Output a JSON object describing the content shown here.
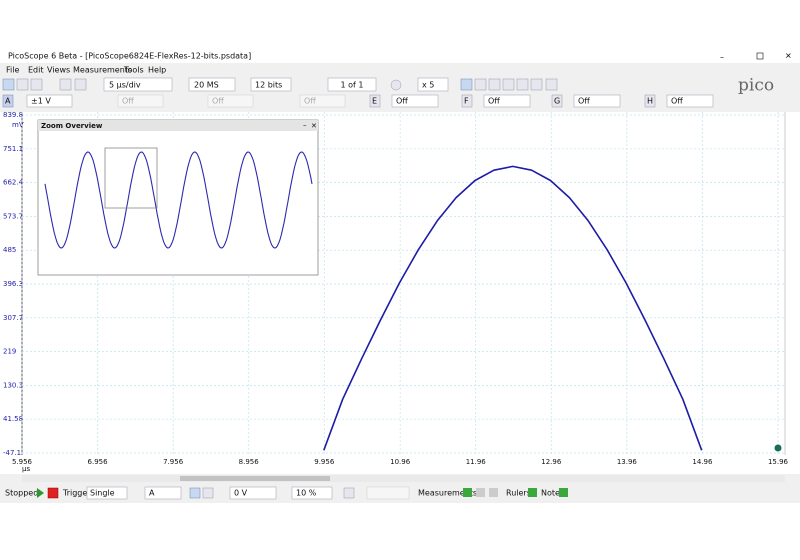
{
  "window": {
    "title": "PicoScope 6 Beta - [PicoScope6824E-FlexRes-12-bits.psdata]"
  },
  "menu": [
    "File",
    "Edit",
    "Views",
    "Measurements",
    "Tools",
    "Help"
  ],
  "logo": "pico",
  "toolbar": {
    "timebase": "5 µs/div",
    "samples": "20 MS",
    "resolution": "12 bits",
    "buffer": "1 of 1",
    "zoom": "x 5",
    "channel_a": {
      "name": "A",
      "range": "±1 V"
    },
    "disabled": [
      "Off",
      "Off",
      "Off"
    ],
    "channels": [
      {
        "name": "E",
        "setting": "Off"
      },
      {
        "name": "F",
        "setting": "Off"
      },
      {
        "name": "G",
        "setting": "Off"
      },
      {
        "name": "H",
        "setting": "Off"
      }
    ]
  },
  "zoom_overview": {
    "title": "Zoom Overview"
  },
  "chart_data": {
    "type": "line",
    "y_label": "mV",
    "x_label": "µs",
    "x": [
      9.95,
      10.2,
      10.45,
      10.7,
      10.95,
      11.2,
      11.45,
      11.7,
      11.95,
      12.2,
      12.45,
      12.7,
      12.95,
      13.2,
      13.45,
      13.7,
      13.95,
      14.2,
      14.45,
      14.7,
      14.95
    ],
    "series": [
      {
        "color": "#1c1ca8",
        "values": [
          -40,
          94,
          200,
          302,
          399,
          486,
          562,
          623,
          668,
          695,
          705,
          695,
          668,
          623,
          562,
          486,
          399,
          302,
          200,
          94,
          -40
        ]
      }
    ],
    "xlim": [
      5.956,
      15.96
    ],
    "ylim": [
      -47.1,
      839.8
    ],
    "xticks": [
      5.956,
      6.956,
      7.956,
      8.956,
      9.956,
      10.96,
      11.96,
      12.96,
      13.96,
      14.96,
      15.96
    ],
    "yticks": [
      -47.1,
      41.58,
      130.3,
      219.0,
      307.7,
      396.3,
      485.0,
      573.7,
      662.4,
      751.1,
      839.8
    ],
    "grid": true
  },
  "status_bar": {
    "state": "Stopped",
    "trigger_label": "Trigger",
    "trigger_mode": "Single",
    "trigger_source": "A",
    "threshold": "0 V",
    "pretrigger": "10 %",
    "measurements": "Measurements",
    "rulers": "Rulers",
    "notes": "Notes"
  }
}
